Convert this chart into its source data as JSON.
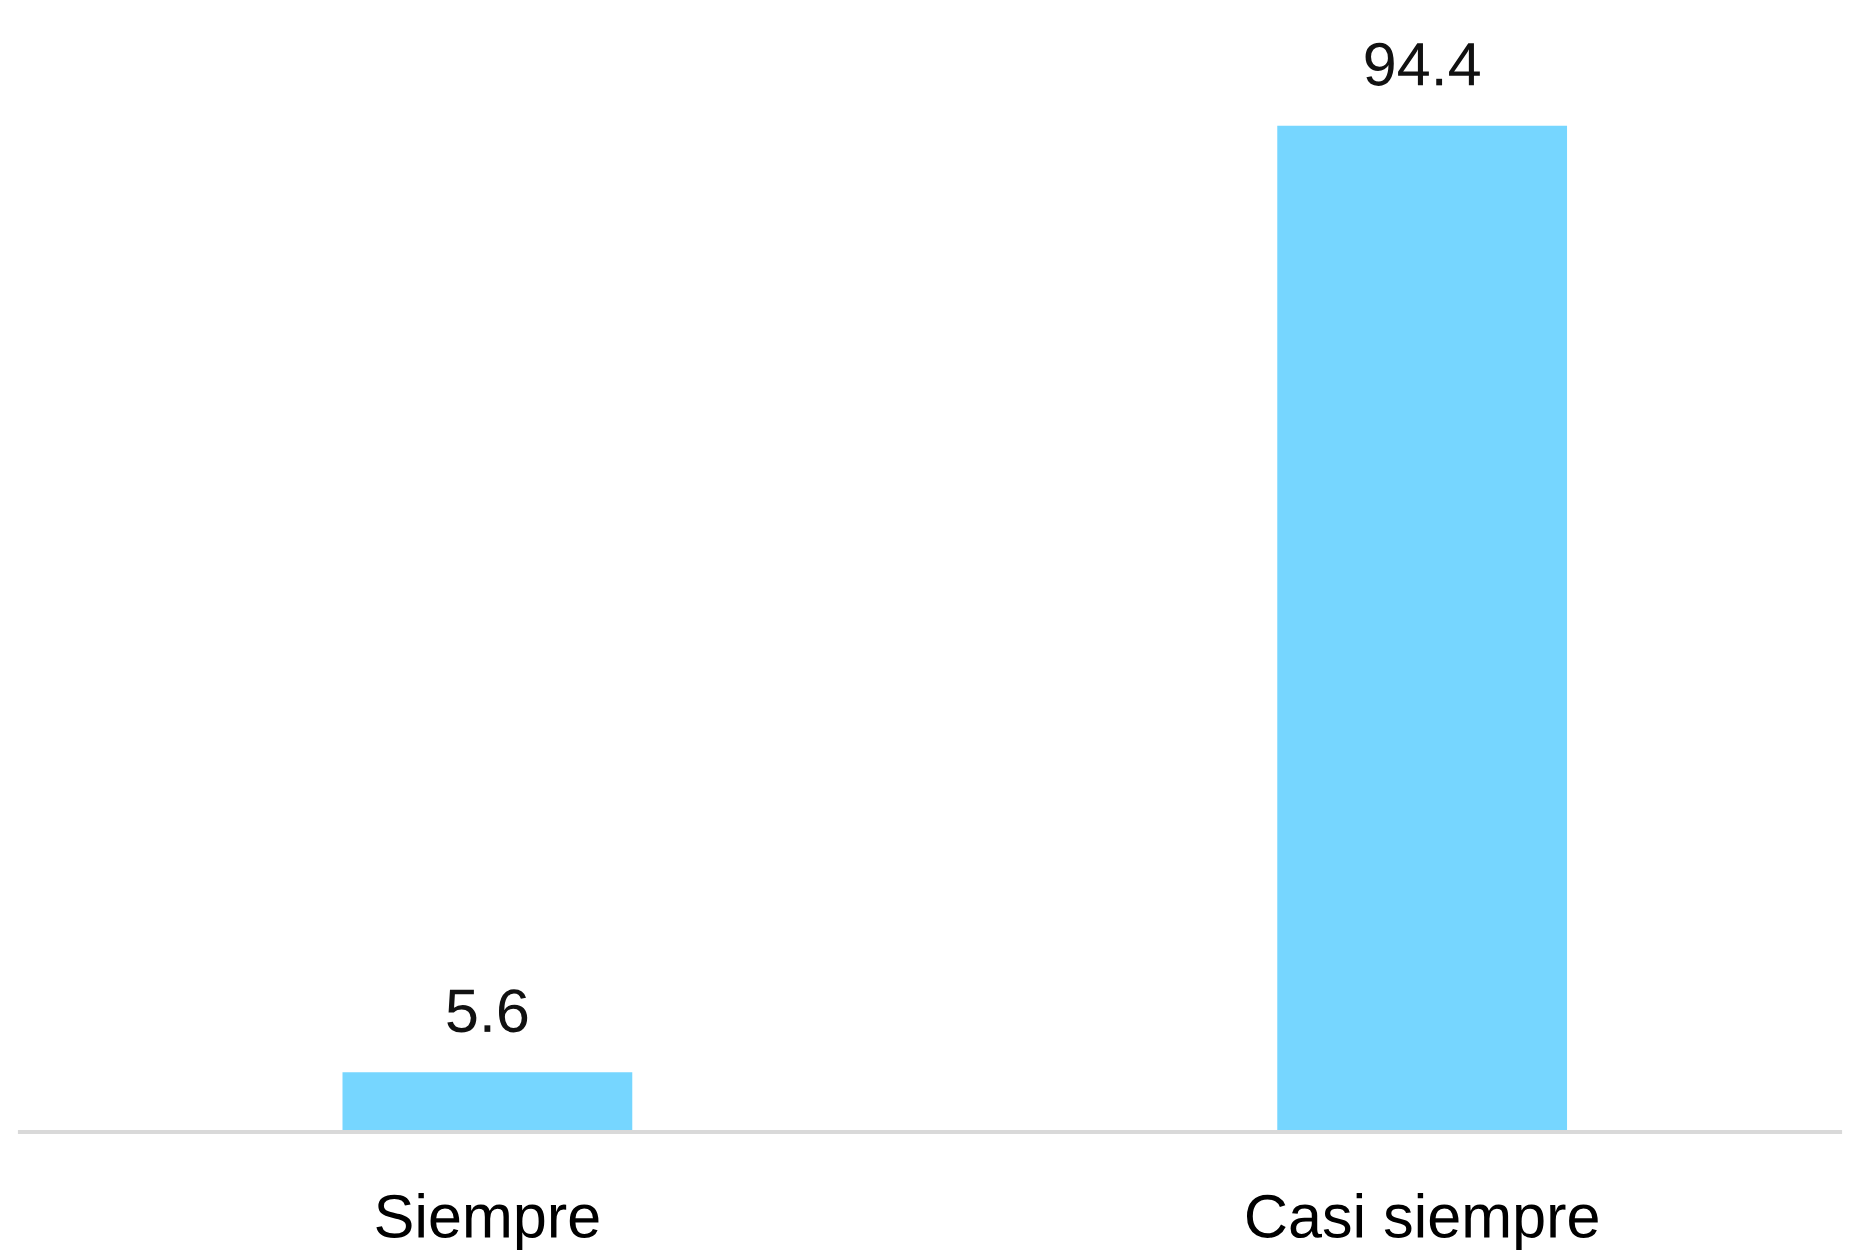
{
  "chart_data": {
    "type": "bar",
    "categories": [
      "Siempre",
      "Casi siempre"
    ],
    "values": [
      5.6,
      94.4
    ],
    "color": "#76d6ff",
    "data_labels": true,
    "grid": false,
    "legend": false
  }
}
